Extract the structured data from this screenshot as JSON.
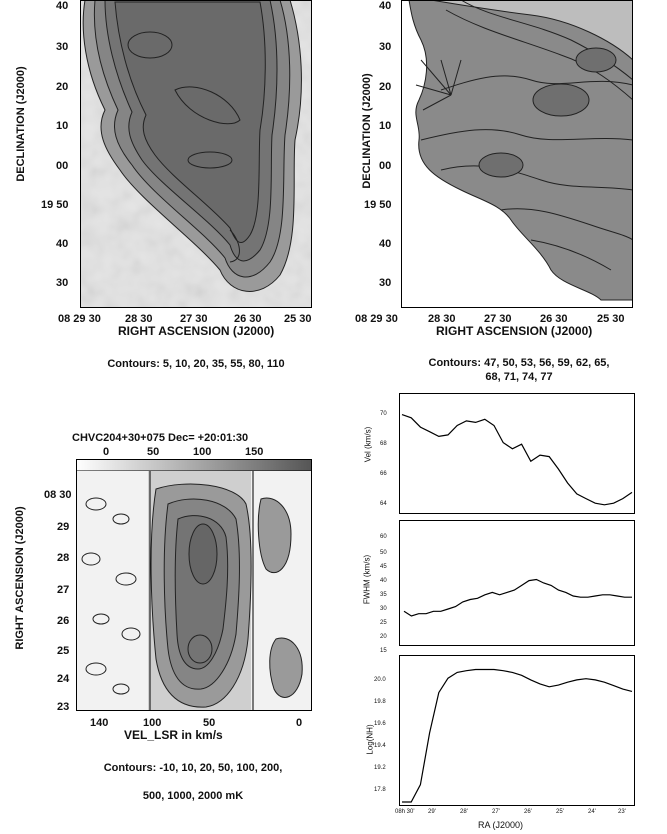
{
  "figure": {
    "panel_a": {
      "ylabel": "DECLINATION (J2000)",
      "xlabel": "RIGHT ASCENSION (J2000)",
      "yticks": [
        "40",
        "30",
        "20",
        "10",
        "00",
        "19 50",
        "40",
        "30"
      ],
      "xticks": [
        "08 29 30",
        "28 30",
        "27 30",
        "26 30",
        "25 30"
      ],
      "caption": "Contours: 5, 10, 20, 35, 55, 80, 110"
    },
    "panel_b": {
      "ylabel": "DECLINATION (J2000)",
      "xlabel": "RIGHT ASCENSION (J2000)",
      "yticks": [
        "40",
        "30",
        "20",
        "10",
        "00",
        "19 50",
        "40",
        "30"
      ],
      "xticks": [
        "08 29 30",
        "28 30",
        "27 30",
        "26 30",
        "25 30"
      ],
      "caption_line1": "Contours: 47, 50, 53, 56, 59, 62, 65,",
      "caption_line2": "68, 71, 74, 77"
    },
    "panel_c": {
      "title": "CHVC204+30+075  Dec= +20:01:30",
      "top_ticks": [
        "0",
        "50",
        "100",
        "150"
      ],
      "ylabel": "RIGHT ASCENSION (J2000)",
      "yticks": [
        "08 30",
        "29",
        "28",
        "27",
        "26",
        "25",
        "24",
        "23"
      ],
      "xticks": [
        "140",
        "100",
        "50",
        "0"
      ],
      "xlabel": "VEL_LSR in km/s",
      "caption_line1": "Contours: -10, 10, 20, 50, 100, 200,",
      "caption_line2": "500, 1000, 2000 mK"
    },
    "panel_d": {
      "vel_ylabel": "Vel (km/s)",
      "vel_yticks": [
        "70",
        "68",
        "66",
        "64"
      ],
      "fwhm_ylabel": "FWHM (km/s)",
      "fwhm_yticks": [
        "60",
        "50",
        "45",
        "40",
        "35",
        "30",
        "25",
        "20",
        "15"
      ],
      "nh_ylabel": "Log(NH)",
      "nh_yticks": [
        "20.0",
        "19.8",
        "19.6",
        "19.4",
        "19.2",
        "17.8"
      ],
      "xlabel": "RA (J2000)",
      "xticks": [
        "08h 30'",
        "29'",
        "28'",
        "27'",
        "26'",
        "25'",
        "24'",
        "23'"
      ]
    },
    "profile_data": {
      "vel": [
        69,
        68.8,
        68.2,
        67.9,
        67.6,
        67.7,
        68.3,
        68.6,
        68.5,
        68.7,
        68.3,
        67.2,
        66.8,
        67.1,
        66.0,
        66.4,
        66.3,
        65.5,
        64.6,
        63.9,
        63.6,
        63.3,
        63.2,
        63.3,
        63.6,
        64.0
      ],
      "fwhm": [
        25,
        23,
        24,
        24,
        25,
        25,
        26,
        27,
        29,
        30,
        30.5,
        32,
        33,
        32,
        33,
        34,
        36,
        38,
        38.5,
        37,
        36,
        34,
        33,
        31.5,
        31,
        31,
        31.5,
        32,
        32,
        31.5,
        31,
        31
      ],
      "lognh": [
        17.6,
        17.6,
        17.9,
        18.8,
        19.5,
        19.75,
        19.85,
        19.88,
        19.9,
        19.9,
        19.9,
        19.88,
        19.85,
        19.8,
        19.72,
        19.65,
        19.6,
        19.63,
        19.68,
        19.72,
        19.74,
        19.72,
        19.68,
        19.62,
        19.56,
        19.52
      ]
    }
  }
}
